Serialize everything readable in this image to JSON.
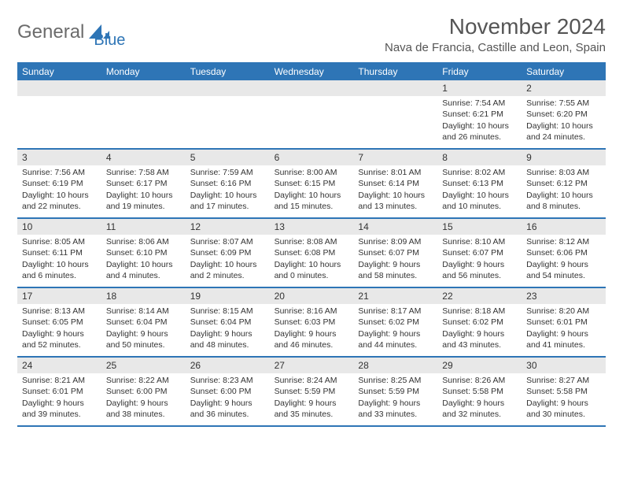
{
  "logo": {
    "text1": "General",
    "text2": "Blue"
  },
  "title": "November 2024",
  "location": "Nava de Francia, Castille and Leon, Spain",
  "colors": {
    "header_bg": "#2e75b6",
    "header_text": "#ffffff",
    "daynum_bg": "#e8e8e8",
    "border": "#2e75b6",
    "body_text": "#333333",
    "logo_gray": "#6b6b6b",
    "logo_blue": "#2e75b6"
  },
  "dow": [
    "Sunday",
    "Monday",
    "Tuesday",
    "Wednesday",
    "Thursday",
    "Friday",
    "Saturday"
  ],
  "weeks": [
    [
      {
        "n": "",
        "sr": "",
        "ss": "",
        "dl": ""
      },
      {
        "n": "",
        "sr": "",
        "ss": "",
        "dl": ""
      },
      {
        "n": "",
        "sr": "",
        "ss": "",
        "dl": ""
      },
      {
        "n": "",
        "sr": "",
        "ss": "",
        "dl": ""
      },
      {
        "n": "",
        "sr": "",
        "ss": "",
        "dl": ""
      },
      {
        "n": "1",
        "sr": "Sunrise: 7:54 AM",
        "ss": "Sunset: 6:21 PM",
        "dl": "Daylight: 10 hours and 26 minutes."
      },
      {
        "n": "2",
        "sr": "Sunrise: 7:55 AM",
        "ss": "Sunset: 6:20 PM",
        "dl": "Daylight: 10 hours and 24 minutes."
      }
    ],
    [
      {
        "n": "3",
        "sr": "Sunrise: 7:56 AM",
        "ss": "Sunset: 6:19 PM",
        "dl": "Daylight: 10 hours and 22 minutes."
      },
      {
        "n": "4",
        "sr": "Sunrise: 7:58 AM",
        "ss": "Sunset: 6:17 PM",
        "dl": "Daylight: 10 hours and 19 minutes."
      },
      {
        "n": "5",
        "sr": "Sunrise: 7:59 AM",
        "ss": "Sunset: 6:16 PM",
        "dl": "Daylight: 10 hours and 17 minutes."
      },
      {
        "n": "6",
        "sr": "Sunrise: 8:00 AM",
        "ss": "Sunset: 6:15 PM",
        "dl": "Daylight: 10 hours and 15 minutes."
      },
      {
        "n": "7",
        "sr": "Sunrise: 8:01 AM",
        "ss": "Sunset: 6:14 PM",
        "dl": "Daylight: 10 hours and 13 minutes."
      },
      {
        "n": "8",
        "sr": "Sunrise: 8:02 AM",
        "ss": "Sunset: 6:13 PM",
        "dl": "Daylight: 10 hours and 10 minutes."
      },
      {
        "n": "9",
        "sr": "Sunrise: 8:03 AM",
        "ss": "Sunset: 6:12 PM",
        "dl": "Daylight: 10 hours and 8 minutes."
      }
    ],
    [
      {
        "n": "10",
        "sr": "Sunrise: 8:05 AM",
        "ss": "Sunset: 6:11 PM",
        "dl": "Daylight: 10 hours and 6 minutes."
      },
      {
        "n": "11",
        "sr": "Sunrise: 8:06 AM",
        "ss": "Sunset: 6:10 PM",
        "dl": "Daylight: 10 hours and 4 minutes."
      },
      {
        "n": "12",
        "sr": "Sunrise: 8:07 AM",
        "ss": "Sunset: 6:09 PM",
        "dl": "Daylight: 10 hours and 2 minutes."
      },
      {
        "n": "13",
        "sr": "Sunrise: 8:08 AM",
        "ss": "Sunset: 6:08 PM",
        "dl": "Daylight: 10 hours and 0 minutes."
      },
      {
        "n": "14",
        "sr": "Sunrise: 8:09 AM",
        "ss": "Sunset: 6:07 PM",
        "dl": "Daylight: 9 hours and 58 minutes."
      },
      {
        "n": "15",
        "sr": "Sunrise: 8:10 AM",
        "ss": "Sunset: 6:07 PM",
        "dl": "Daylight: 9 hours and 56 minutes."
      },
      {
        "n": "16",
        "sr": "Sunrise: 8:12 AM",
        "ss": "Sunset: 6:06 PM",
        "dl": "Daylight: 9 hours and 54 minutes."
      }
    ],
    [
      {
        "n": "17",
        "sr": "Sunrise: 8:13 AM",
        "ss": "Sunset: 6:05 PM",
        "dl": "Daylight: 9 hours and 52 minutes."
      },
      {
        "n": "18",
        "sr": "Sunrise: 8:14 AM",
        "ss": "Sunset: 6:04 PM",
        "dl": "Daylight: 9 hours and 50 minutes."
      },
      {
        "n": "19",
        "sr": "Sunrise: 8:15 AM",
        "ss": "Sunset: 6:04 PM",
        "dl": "Daylight: 9 hours and 48 minutes."
      },
      {
        "n": "20",
        "sr": "Sunrise: 8:16 AM",
        "ss": "Sunset: 6:03 PM",
        "dl": "Daylight: 9 hours and 46 minutes."
      },
      {
        "n": "21",
        "sr": "Sunrise: 8:17 AM",
        "ss": "Sunset: 6:02 PM",
        "dl": "Daylight: 9 hours and 44 minutes."
      },
      {
        "n": "22",
        "sr": "Sunrise: 8:18 AM",
        "ss": "Sunset: 6:02 PM",
        "dl": "Daylight: 9 hours and 43 minutes."
      },
      {
        "n": "23",
        "sr": "Sunrise: 8:20 AM",
        "ss": "Sunset: 6:01 PM",
        "dl": "Daylight: 9 hours and 41 minutes."
      }
    ],
    [
      {
        "n": "24",
        "sr": "Sunrise: 8:21 AM",
        "ss": "Sunset: 6:01 PM",
        "dl": "Daylight: 9 hours and 39 minutes."
      },
      {
        "n": "25",
        "sr": "Sunrise: 8:22 AM",
        "ss": "Sunset: 6:00 PM",
        "dl": "Daylight: 9 hours and 38 minutes."
      },
      {
        "n": "26",
        "sr": "Sunrise: 8:23 AM",
        "ss": "Sunset: 6:00 PM",
        "dl": "Daylight: 9 hours and 36 minutes."
      },
      {
        "n": "27",
        "sr": "Sunrise: 8:24 AM",
        "ss": "Sunset: 5:59 PM",
        "dl": "Daylight: 9 hours and 35 minutes."
      },
      {
        "n": "28",
        "sr": "Sunrise: 8:25 AM",
        "ss": "Sunset: 5:59 PM",
        "dl": "Daylight: 9 hours and 33 minutes."
      },
      {
        "n": "29",
        "sr": "Sunrise: 8:26 AM",
        "ss": "Sunset: 5:58 PM",
        "dl": "Daylight: 9 hours and 32 minutes."
      },
      {
        "n": "30",
        "sr": "Sunrise: 8:27 AM",
        "ss": "Sunset: 5:58 PM",
        "dl": "Daylight: 9 hours and 30 minutes."
      }
    ]
  ]
}
